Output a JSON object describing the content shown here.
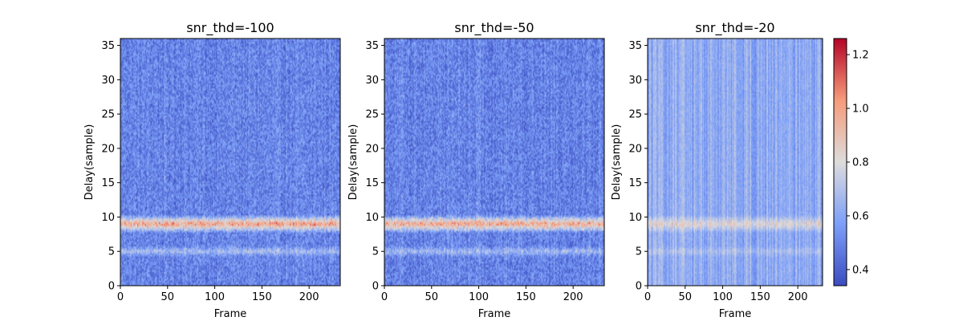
{
  "chart_data": {
    "type": "heatmap",
    "colormap": "coolwarm",
    "colorbar": {
      "min": 0.34,
      "max": 1.26,
      "ticks": [
        "0.4",
        "0.6",
        "0.8",
        "1.0",
        "1.2"
      ],
      "tick_values": [
        0.4,
        0.6,
        0.8,
        1.0,
        1.2
      ]
    },
    "xlabel": "Frame",
    "ylabel": "Delay(sample)",
    "xlim": [
      0,
      233
    ],
    "ylim": [
      0,
      36
    ],
    "x_ticks": [
      "0",
      "50",
      "100",
      "150",
      "200"
    ],
    "x_tick_values": [
      0,
      50,
      100,
      150,
      200
    ],
    "y_ticks": [
      "0",
      "5",
      "10",
      "15",
      "20",
      "25",
      "30",
      "35"
    ],
    "y_tick_values": [
      0,
      5,
      10,
      15,
      20,
      25,
      30,
      35
    ],
    "panels": [
      {
        "title": "snr_thd=-100",
        "peak_delay": 9,
        "background_level": 0.5,
        "peak_level": 1.05,
        "secondary_delay": 5,
        "secondary_level": 0.68
      },
      {
        "title": "snr_thd=-50",
        "peak_delay": 9,
        "background_level": 0.5,
        "peak_level": 1.05,
        "secondary_delay": 5,
        "secondary_level": 0.68
      },
      {
        "title": "snr_thd=-20",
        "peak_delay": 9,
        "background_level": 0.62,
        "peak_level": 0.85,
        "secondary_delay": 5,
        "secondary_level": 0.7
      }
    ]
  }
}
